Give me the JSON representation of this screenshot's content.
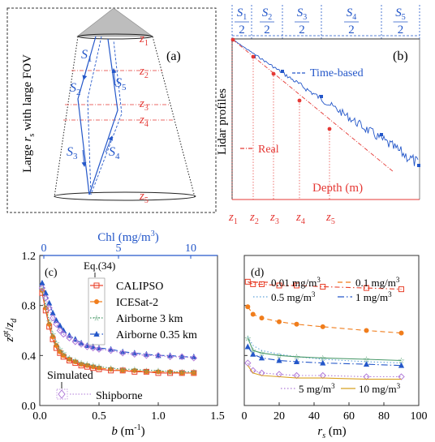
{
  "panels": {
    "a": {
      "label": "(a)",
      "ylabel_pre": "Large ",
      "ylabel_r": "r",
      "ylabel_s": "s",
      "ylabel_post": " with large FOV",
      "z_labels": [
        {
          "z": "z",
          "sub": "1"
        },
        {
          "z": "z",
          "sub": "2"
        },
        {
          "z": "z",
          "sub": "3"
        },
        {
          "z": "z",
          "sub": "4"
        },
        {
          "z": "z",
          "sub": "5"
        }
      ],
      "s_labels": [
        {
          "s": "S",
          "sub": "1"
        },
        {
          "s": "S",
          "sub": "2"
        },
        {
          "s": "S",
          "sub": "3"
        },
        {
          "s": "S",
          "sub": "4"
        },
        {
          "s": "S",
          "sub": "5"
        }
      ]
    },
    "b": {
      "label": "(b)",
      "ylabel": "Lidar profiles",
      "legend_time": "Time-based",
      "legend_real": "Real",
      "xlabel": "Depth (m)",
      "top_fracs": [
        {
          "s": "S",
          "sub": "1",
          "den": "2"
        },
        {
          "s": "S",
          "sub": "2",
          "den": "2"
        },
        {
          "s": "S",
          "sub": "3",
          "den": "2"
        },
        {
          "s": "S",
          "sub": "4",
          "den": "2"
        },
        {
          "s": "S",
          "sub": "5",
          "den": "2"
        }
      ],
      "bottom_z": [
        {
          "z": "z",
          "sub": "1"
        },
        {
          "z": "z",
          "sub": "2"
        },
        {
          "z": "z",
          "sub": "3"
        },
        {
          "z": "z",
          "sub": "4"
        },
        {
          "z": "z",
          "sub": "5"
        }
      ]
    }
  },
  "chart_data": [
    {
      "id": "c",
      "type": "scatter",
      "panel_label": "(c)",
      "xlabel_b": "b",
      "xlabel_unit": " (m",
      "xlabel_exp": "-1",
      "xlabel_close": ")",
      "ylabel_num": "z",
      "ylabel_num_sup": "gt",
      "ylabel_den": "z",
      "ylabel_den_sub": "d",
      "top_axis_label": "Chl (mg/m",
      "top_axis_exp": "3",
      "top_axis_close": ")",
      "xlim": [
        0,
        1.5
      ],
      "ylim": [
        0,
        1.2
      ],
      "xticks": [
        "0.0",
        "0.5",
        "1.0",
        "1.5"
      ],
      "yticks": [
        "0.0",
        "0.4",
        "0.8",
        "1.2"
      ],
      "top_ticks": [
        "0",
        "5",
        "10"
      ],
      "legend_header": "Eq.(34)",
      "sim_header": "Simulated",
      "series": [
        {
          "name": "CALIPSO",
          "color": "#e8402a",
          "marker": "square-open",
          "x": [
            0.02,
            0.05,
            0.08,
            0.11,
            0.14,
            0.17,
            0.2,
            0.25,
            0.3,
            0.35,
            0.4,
            0.45,
            0.5,
            0.6,
            0.7,
            0.8,
            0.9,
            1.0,
            1.1,
            1.2,
            1.3
          ],
          "y": [
            0.9,
            0.76,
            0.63,
            0.53,
            0.46,
            0.42,
            0.39,
            0.36,
            0.34,
            0.32,
            0.31,
            0.3,
            0.29,
            0.28,
            0.28,
            0.27,
            0.27,
            0.26,
            0.26,
            0.26,
            0.26
          ]
        },
        {
          "name": "ICESat-2",
          "color": "#f07d1c",
          "marker": "circle",
          "x": [
            0.02,
            0.05,
            0.08,
            0.11,
            0.14,
            0.17,
            0.2,
            0.25,
            0.3,
            0.35,
            0.4,
            0.45,
            0.5,
            0.6,
            0.7,
            0.8,
            0.9,
            1.0,
            1.1,
            1.2,
            1.3
          ],
          "y": [
            0.92,
            0.78,
            0.65,
            0.55,
            0.48,
            0.43,
            0.4,
            0.37,
            0.35,
            0.33,
            0.32,
            0.31,
            0.3,
            0.29,
            0.28,
            0.28,
            0.27,
            0.27,
            0.27,
            0.26,
            0.26
          ]
        },
        {
          "name": "Airborne 3 km",
          "color": "#4a9a6a",
          "marker": "star",
          "x": [
            0.02,
            0.05,
            0.08,
            0.11,
            0.14,
            0.17,
            0.2,
            0.25,
            0.3,
            0.35,
            0.4,
            0.45,
            0.5,
            0.6,
            0.7,
            0.8,
            0.9,
            1.0,
            1.1,
            1.2,
            1.3
          ],
          "y": [
            0.93,
            0.8,
            0.67,
            0.57,
            0.5,
            0.45,
            0.42,
            0.38,
            0.36,
            0.34,
            0.33,
            0.32,
            0.31,
            0.3,
            0.29,
            0.29,
            0.28,
            0.28,
            0.27,
            0.27,
            0.27
          ]
        },
        {
          "name": "Airborne 0.35 km",
          "color": "#2457c9",
          "marker": "triangle",
          "x": [
            0.02,
            0.05,
            0.08,
            0.11,
            0.14,
            0.17,
            0.2,
            0.25,
            0.3,
            0.35,
            0.4,
            0.45,
            0.5,
            0.6,
            0.7,
            0.8,
            0.9,
            1.0,
            1.1,
            1.2,
            1.3
          ],
          "y": [
            0.98,
            0.9,
            0.82,
            0.74,
            0.68,
            0.64,
            0.6,
            0.56,
            0.53,
            0.5,
            0.48,
            0.47,
            0.46,
            0.45,
            0.43,
            0.42,
            0.41,
            0.4,
            0.4,
            0.39,
            0.39
          ]
        },
        {
          "name": "Shipborne",
          "color": "#b07ad8",
          "marker": "diamond-open",
          "x": [
            0.02,
            0.05,
            0.08,
            0.11,
            0.14,
            0.17,
            0.2,
            0.25,
            0.3,
            0.35,
            0.4,
            0.45,
            0.5,
            0.6,
            0.7,
            0.8,
            0.9,
            1.0,
            1.1,
            1.2,
            1.3
          ],
          "y": [
            0.94,
            0.86,
            0.78,
            0.7,
            0.65,
            0.6,
            0.57,
            0.54,
            0.51,
            0.49,
            0.47,
            0.46,
            0.45,
            0.44,
            0.42,
            0.41,
            0.4,
            0.4,
            0.39,
            0.39,
            0.38
          ]
        }
      ]
    },
    {
      "id": "d",
      "type": "scatter",
      "panel_label": "(d)",
      "xlabel_r": "r",
      "xlabel_s": "s",
      "xlabel_unit": " (m)",
      "xlim": [
        0,
        100
      ],
      "ylim": [
        0,
        1.2
      ],
      "xticks": [
        "0",
        "20",
        "40",
        "60",
        "80",
        "100"
      ],
      "yticks": [
        "0.0",
        "0.4",
        "0.8",
        "1.2"
      ],
      "legend_units": "mg/m",
      "legend_exp": "3",
      "series": [
        {
          "name": "0.01",
          "color": "#e8402a",
          "dash": "6,3,1.5,3",
          "marker": "square-open",
          "x": [
            2,
            5,
            10,
            20,
            30,
            45,
            70,
            90
          ],
          "y": [
            0.99,
            0.97,
            0.97,
            0.96,
            0.96,
            0.95,
            0.94,
            0.93
          ]
        },
        {
          "name": "0.1",
          "color": "#f07d1c",
          "dash": "6,4",
          "marker": "circle",
          "x": [
            2,
            5,
            10,
            20,
            30,
            45,
            70,
            90
          ],
          "y": [
            0.79,
            0.73,
            0.7,
            0.67,
            0.65,
            0.63,
            0.6,
            0.58
          ]
        },
        {
          "name": "0.5",
          "color": "#5fa3d9",
          "dash": "1.5,2.5",
          "marker": "none",
          "x": [
            2,
            5,
            10,
            20,
            30,
            45,
            70,
            90
          ],
          "y": [
            0.55,
            0.48,
            0.44,
            0.41,
            0.39,
            0.37,
            0.35,
            0.34
          ]
        },
        {
          "name": "1",
          "color": "#2457c9",
          "dash": "8,3,1.5,3",
          "marker": "triangle",
          "x": [
            2,
            5,
            10,
            20,
            30,
            45,
            70,
            90
          ],
          "y": [
            0.47,
            0.41,
            0.38,
            0.36,
            0.35,
            0.34,
            0.33,
            0.32
          ]
        },
        {
          "name": "",
          "color": "#4a9a6a",
          "dash": "",
          "marker": "star",
          "x": [
            2,
            5,
            10,
            20,
            30,
            45,
            70,
            90
          ],
          "y": [
            0.54,
            0.44,
            0.42,
            0.4,
            0.39,
            0.38,
            0.37,
            0.36
          ]
        },
        {
          "name": "5",
          "color": "#b07ad8",
          "dash": "1.5,2.5",
          "marker": "diamond-open",
          "x": [
            2,
            5,
            10,
            20,
            30,
            45,
            70,
            90
          ],
          "y": [
            0.34,
            0.28,
            0.26,
            0.25,
            0.24,
            0.24,
            0.23,
            0.23
          ]
        },
        {
          "name": "10",
          "color": "#d8a020",
          "dash": "",
          "marker": "none",
          "x": [
            2,
            5,
            10,
            20,
            30,
            45,
            70,
            90
          ],
          "y": [
            0.32,
            0.26,
            0.24,
            0.23,
            0.22,
            0.22,
            0.21,
            0.21
          ]
        }
      ]
    }
  ]
}
